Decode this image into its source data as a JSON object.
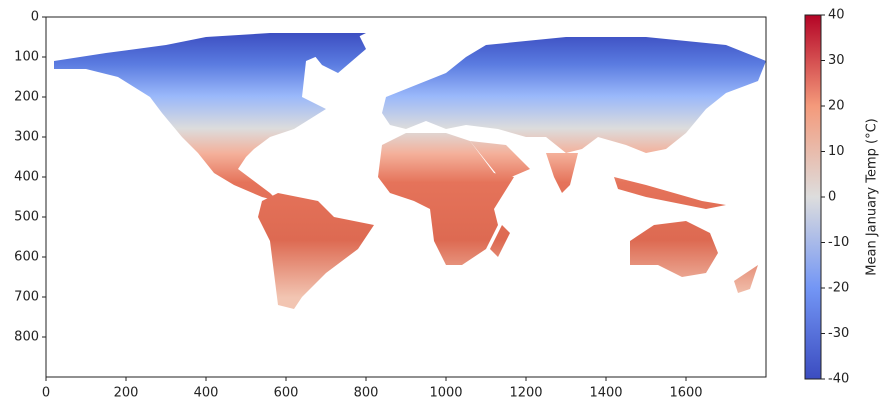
{
  "chart_data": {
    "type": "image",
    "xlim": [
      0,
      1800
    ],
    "xticks": [
      0,
      200,
      400,
      600,
      800,
      1000,
      1200,
      1400,
      1600
    ],
    "ylim": [
      900,
      0
    ],
    "yticks": [
      0,
      100,
      200,
      300,
      400,
      500,
      600,
      700,
      800
    ],
    "colormap": "coolwarm",
    "colorbar": {
      "label": "Mean January Temp (°C)",
      "lim": [
        -40,
        40
      ],
      "ticks": [
        -40,
        -30,
        -20,
        -10,
        0,
        10,
        20,
        30,
        40
      ]
    }
  }
}
